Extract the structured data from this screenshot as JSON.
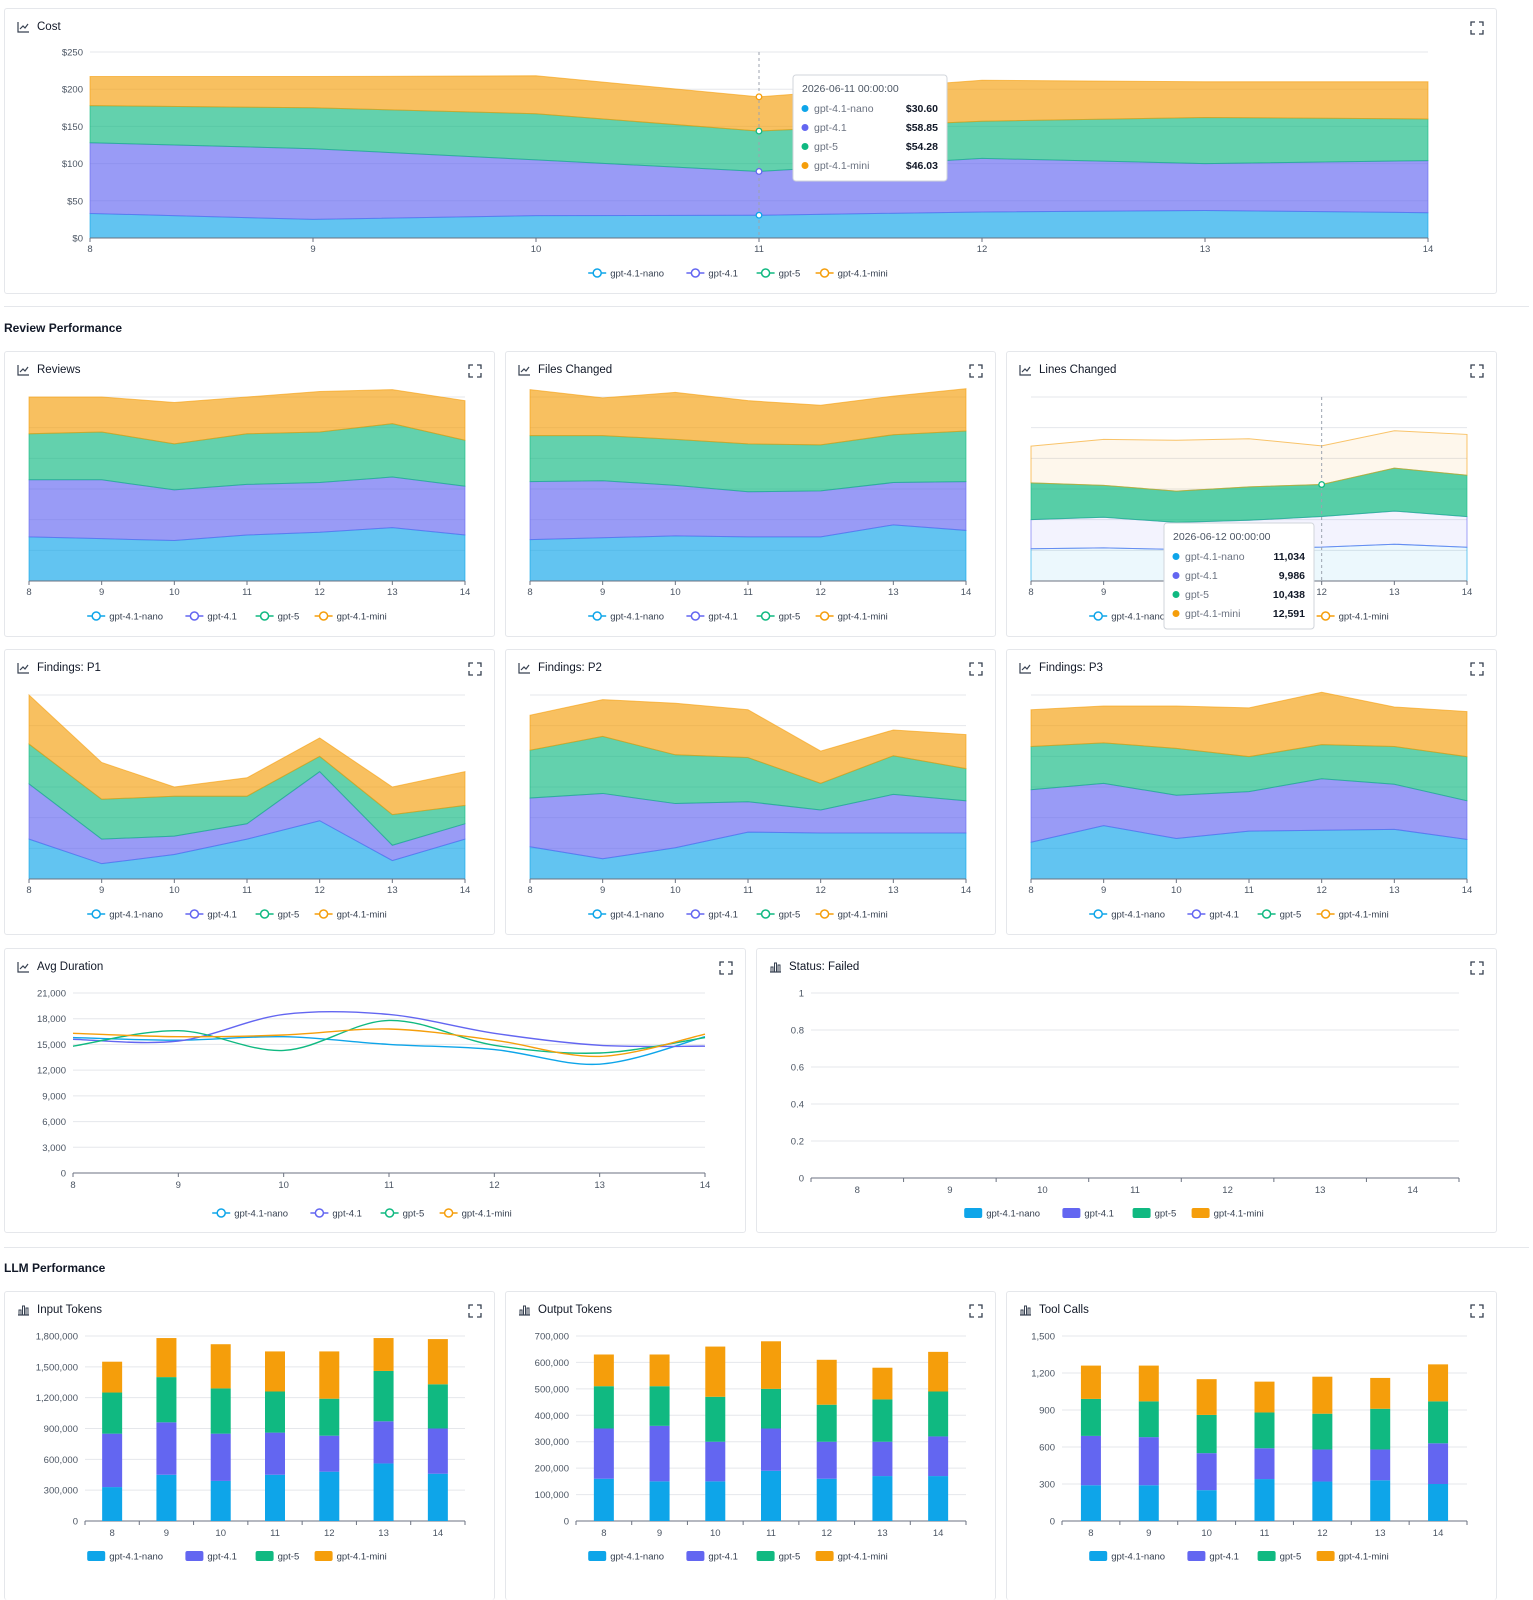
{
  "colors": {
    "gpt-4.1-nano": "#0ea5e9",
    "gpt-4.1": "#6366f1",
    "gpt-5": "#10b981",
    "gpt-4.1-mini": "#f59e0b"
  },
  "sections": {
    "review": "Review Performance",
    "llm": "LLM Performance"
  },
  "panels": {
    "cost": {
      "title": "Cost",
      "icon": "line-chart-icon"
    },
    "reviews": {
      "title": "Reviews",
      "icon": "line-chart-icon"
    },
    "files": {
      "title": "Files Changed",
      "icon": "line-chart-icon"
    },
    "lines": {
      "title": "Lines Changed",
      "icon": "line-chart-icon"
    },
    "p1": {
      "title": "Findings: P1",
      "icon": "line-chart-icon"
    },
    "p2": {
      "title": "Findings: P2",
      "icon": "line-chart-icon"
    },
    "p3": {
      "title": "Findings: P3",
      "icon": "line-chart-icon"
    },
    "duration": {
      "title": "Avg Duration",
      "icon": "line-chart-icon"
    },
    "failed": {
      "title": "Status: Failed",
      "icon": "bar-chart-icon"
    },
    "input": {
      "title": "Input Tokens",
      "icon": "bar-chart-icon"
    },
    "output": {
      "title": "Output Tokens",
      "icon": "bar-chart-icon"
    },
    "tools": {
      "title": "Tool Calls",
      "icon": "bar-chart-icon"
    }
  },
  "tooltips": {
    "cost": {
      "title": "2026-06-11 00:00:00",
      "rows": [
        {
          "series": "gpt-4.1-nano",
          "value": "$30.60"
        },
        {
          "series": "gpt-4.1",
          "value": "$58.85"
        },
        {
          "series": "gpt-5",
          "value": "$54.28"
        },
        {
          "series": "gpt-4.1-mini",
          "value": "$46.03"
        }
      ]
    },
    "lines": {
      "title": "2026-06-12 00:00:00",
      "rows": [
        {
          "series": "gpt-4.1-nano",
          "value": "11,034"
        },
        {
          "series": "gpt-4.1",
          "value": "9,986"
        },
        {
          "series": "gpt-5",
          "value": "10,438"
        },
        {
          "series": "gpt-4.1-mini",
          "value": "12,591"
        }
      ]
    }
  },
  "chart_data": [
    {
      "id": "cost",
      "type": "area",
      "stacked": true,
      "x": [
        8,
        9,
        10,
        11,
        12,
        13,
        14
      ],
      "yticks": [
        "$0",
        "$50",
        "$100",
        "$150",
        "$200",
        "$250"
      ],
      "ylim": [
        0,
        250
      ],
      "series": [
        {
          "name": "gpt-4.1-nano",
          "values": [
            33,
            25,
            30,
            30.6,
            35,
            37,
            34
          ]
        },
        {
          "name": "gpt-4.1",
          "values": [
            95,
            95,
            75,
            58.85,
            72,
            63,
            70
          ]
        },
        {
          "name": "gpt-5",
          "values": [
            50,
            55,
            62,
            54.28,
            50,
            62,
            56
          ]
        },
        {
          "name": "gpt-4.1-mini",
          "values": [
            39,
            42,
            51,
            46.03,
            55,
            48,
            50
          ]
        }
      ]
    },
    {
      "id": "reviews",
      "type": "area",
      "stacked": true,
      "x": [
        8,
        9,
        10,
        11,
        12,
        13,
        14
      ],
      "ylim": [
        0,
        200
      ],
      "series": [
        {
          "name": "gpt-4.1-nano",
          "values": [
            48,
            46,
            44,
            50,
            53,
            58,
            50
          ]
        },
        {
          "name": "gpt-4.1",
          "values": [
            62,
            64,
            55,
            55,
            54,
            55,
            53
          ]
        },
        {
          "name": "gpt-5",
          "values": [
            50,
            52,
            50,
            55,
            55,
            58,
            50
          ]
        },
        {
          "name": "gpt-4.1-mini",
          "values": [
            40,
            38,
            45,
            40,
            44,
            37,
            43
          ]
        }
      ]
    },
    {
      "id": "files",
      "type": "area",
      "stacked": true,
      "x": [
        8,
        9,
        10,
        11,
        12,
        13,
        14
      ],
      "ylim": [
        0,
        200
      ],
      "series": [
        {
          "name": "gpt-4.1-nano",
          "values": [
            45,
            47,
            49,
            48,
            48,
            61,
            55
          ]
        },
        {
          "name": "gpt-4.1",
          "values": [
            63,
            62,
            55,
            49,
            50,
            46,
            53
          ]
        },
        {
          "name": "gpt-5",
          "values": [
            50,
            49,
            50,
            52,
            50,
            52,
            55
          ]
        },
        {
          "name": "gpt-4.1-mini",
          "values": [
            50,
            41,
            51,
            47,
            43,
            42,
            46
          ]
        }
      ]
    },
    {
      "id": "lines",
      "type": "area",
      "stacked": true,
      "x": [
        8,
        9,
        10,
        11,
        12,
        13,
        14
      ],
      "ylim": [
        0,
        60000
      ],
      "series": [
        {
          "name": "gpt-4.1-nano",
          "values": [
            10500,
            10800,
            10300,
            10600,
            11034,
            12000,
            11000
          ]
        },
        {
          "name": "gpt-4.1",
          "values": [
            9500,
            10000,
            8800,
            9200,
            9986,
            10800,
            10000
          ]
        },
        {
          "name": "gpt-5",
          "values": [
            12000,
            10400,
            10200,
            10900,
            10438,
            14000,
            13500
          ]
        },
        {
          "name": "gpt-4.1-mini",
          "values": [
            12000,
            15000,
            16600,
            15700,
            12591,
            12200,
            13300
          ]
        }
      ]
    },
    {
      "id": "p1",
      "type": "area",
      "stacked": true,
      "x": [
        8,
        9,
        10,
        11,
        12,
        13,
        14
      ],
      "ylim": [
        0,
        60
      ],
      "series": [
        {
          "name": "gpt-4.1-nano",
          "values": [
            13,
            5,
            8,
            13,
            19,
            6,
            13
          ]
        },
        {
          "name": "gpt-4.1",
          "values": [
            18,
            8,
            6,
            5,
            16,
            5,
            5
          ]
        },
        {
          "name": "gpt-5",
          "values": [
            13,
            13,
            13,
            9,
            5,
            10,
            6
          ]
        },
        {
          "name": "gpt-4.1-mini",
          "values": [
            16,
            12,
            3,
            6,
            6,
            9,
            11
          ]
        }
      ]
    },
    {
      "id": "p2",
      "type": "area",
      "stacked": true,
      "x": [
        8,
        9,
        10,
        11,
        12,
        13,
        14
      ],
      "ylim": [
        0,
        200
      ],
      "series": [
        {
          "name": "gpt-4.1-nano",
          "values": [
            35,
            22,
            34,
            51,
            50,
            50,
            50
          ]
        },
        {
          "name": "gpt-4.1",
          "values": [
            53,
            71,
            48,
            33,
            25,
            42,
            35
          ]
        },
        {
          "name": "gpt-5",
          "values": [
            52,
            62,
            53,
            48,
            29,
            42,
            35
          ]
        },
        {
          "name": "gpt-4.1-mini",
          "values": [
            38,
            40,
            56,
            52,
            35,
            28,
            37
          ]
        }
      ]
    },
    {
      "id": "p3",
      "type": "area",
      "stacked": true,
      "x": [
        8,
        9,
        10,
        11,
        12,
        13,
        14
      ],
      "ylim": [
        0,
        200
      ],
      "series": [
        {
          "name": "gpt-4.1-nano",
          "values": [
            40,
            58,
            44,
            52,
            53,
            54,
            43
          ]
        },
        {
          "name": "gpt-4.1",
          "values": [
            57,
            46,
            47,
            43,
            56,
            49,
            42
          ]
        },
        {
          "name": "gpt-5",
          "values": [
            47,
            44,
            51,
            38,
            37,
            41,
            48
          ]
        },
        {
          "name": "gpt-4.1-mini",
          "values": [
            40,
            40,
            46,
            53,
            57,
            43,
            49
          ]
        }
      ]
    },
    {
      "id": "duration",
      "type": "line",
      "x": [
        8,
        9,
        10,
        11,
        12,
        13,
        14
      ],
      "yticks": [
        "0",
        "3,000",
        "6,000",
        "9,000",
        "12,000",
        "15,000",
        "18,000",
        "21,000"
      ],
      "ylim": [
        0,
        21000
      ],
      "series": [
        {
          "name": "gpt-4.1-nano",
          "values": [
            15800,
            15500,
            15900,
            15000,
            14400,
            12700,
            15900
          ]
        },
        {
          "name": "gpt-4.1",
          "values": [
            15600,
            15400,
            18500,
            18500,
            16300,
            14900,
            14800
          ]
        },
        {
          "name": "gpt-5",
          "values": [
            14800,
            16600,
            14300,
            17800,
            14900,
            14000,
            15800
          ]
        },
        {
          "name": "gpt-4.1-mini",
          "values": [
            16300,
            15900,
            16100,
            16800,
            15500,
            13600,
            16200
          ]
        }
      ]
    },
    {
      "id": "failed",
      "type": "bar",
      "stacked": true,
      "x": [
        8,
        9,
        10,
        11,
        12,
        13,
        14
      ],
      "yticks": [
        "0",
        "0.2",
        "0.4",
        "0.6",
        "0.8",
        "1"
      ],
      "ylim": [
        0,
        1
      ],
      "series": [
        {
          "name": "gpt-4.1-nano",
          "values": [
            0,
            0,
            0,
            0,
            0,
            0,
            0
          ]
        },
        {
          "name": "gpt-4.1",
          "values": [
            0,
            0,
            0,
            0,
            0,
            0,
            0
          ]
        },
        {
          "name": "gpt-5",
          "values": [
            0,
            0,
            0,
            0,
            0,
            0,
            0
          ]
        },
        {
          "name": "gpt-4.1-mini",
          "values": [
            0,
            0,
            0,
            0,
            0,
            0,
            0
          ]
        }
      ]
    },
    {
      "id": "input",
      "type": "bar",
      "stacked": true,
      "x": [
        8,
        9,
        10,
        11,
        12,
        13,
        14
      ],
      "yticks": [
        "0",
        "300,000",
        "600,000",
        "900,000",
        "1,200,000",
        "1,500,000",
        "1,800,000"
      ],
      "ylim": [
        0,
        1800000
      ],
      "series": [
        {
          "name": "gpt-4.1-nano",
          "values": [
            330000,
            450000,
            390000,
            450000,
            480000,
            560000,
            460000
          ]
        },
        {
          "name": "gpt-4.1",
          "values": [
            520000,
            510000,
            460000,
            410000,
            350000,
            410000,
            440000
          ]
        },
        {
          "name": "gpt-5",
          "values": [
            400000,
            440000,
            440000,
            400000,
            360000,
            490000,
            430000
          ]
        },
        {
          "name": "gpt-4.1-mini",
          "values": [
            300000,
            380000,
            430000,
            390000,
            460000,
            320000,
            440000
          ]
        }
      ]
    },
    {
      "id": "output",
      "type": "bar",
      "stacked": true,
      "x": [
        8,
        9,
        10,
        11,
        12,
        13,
        14
      ],
      "yticks": [
        "0",
        "100,000",
        "200,000",
        "300,000",
        "400,000",
        "500,000",
        "600,000",
        "700,000"
      ],
      "ylim": [
        0,
        700000
      ],
      "series": [
        {
          "name": "gpt-4.1-nano",
          "values": [
            160000,
            150000,
            150000,
            190000,
            160000,
            170000,
            170000
          ]
        },
        {
          "name": "gpt-4.1",
          "values": [
            190000,
            210000,
            150000,
            160000,
            140000,
            130000,
            150000
          ]
        },
        {
          "name": "gpt-5",
          "values": [
            160000,
            150000,
            170000,
            150000,
            140000,
            160000,
            170000
          ]
        },
        {
          "name": "gpt-4.1-mini",
          "values": [
            120000,
            120000,
            190000,
            180000,
            170000,
            120000,
            150000
          ]
        }
      ]
    },
    {
      "id": "tools",
      "type": "bar",
      "stacked": true,
      "x": [
        8,
        9,
        10,
        11,
        12,
        13,
        14
      ],
      "yticks": [
        "0",
        "300",
        "600",
        "900",
        "1,200",
        "1,500"
      ],
      "ylim": [
        0,
        1500
      ],
      "series": [
        {
          "name": "gpt-4.1-nano",
          "values": [
            290,
            290,
            250,
            340,
            320,
            330,
            300
          ]
        },
        {
          "name": "gpt-4.1",
          "values": [
            400,
            390,
            300,
            250,
            260,
            250,
            330
          ]
        },
        {
          "name": "gpt-5",
          "values": [
            300,
            290,
            310,
            290,
            290,
            330,
            340
          ]
        },
        {
          "name": "gpt-4.1-mini",
          "values": [
            270,
            290,
            290,
            250,
            300,
            250,
            300
          ]
        }
      ]
    }
  ]
}
